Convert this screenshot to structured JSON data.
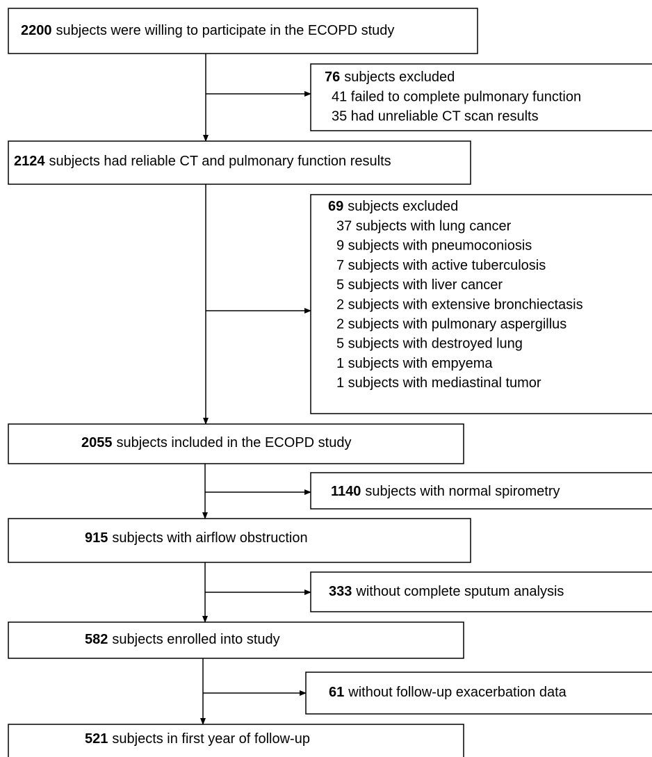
{
  "main_boxes": [
    {
      "count": "2200",
      "text": "subjects were willing to participate in the ECOPD study"
    },
    {
      "count": "2124",
      "text": "subjects had reliable CT and pulmonary function results"
    },
    {
      "count": "2055",
      "text": "subjects included in the ECOPD study"
    },
    {
      "count": "915",
      "text": "subjects with airflow obstruction"
    },
    {
      "count": "582",
      "text": "subjects enrolled into study"
    },
    {
      "count": "521",
      "text": "subjects in first year of follow-up"
    }
  ],
  "exclusion_boxes": [
    {
      "count": "76",
      "text": "subjects excluded",
      "items": [
        "41 failed to complete pulmonary function",
        "35 had unreliable CT scan results"
      ]
    },
    {
      "count": "69",
      "text": "subjects excluded",
      "items": [
        "37 subjects with lung cancer",
        "9 subjects with pneumoconiosis",
        "7 subjects with active tuberculosis",
        "5 subjects with liver cancer",
        "2 subjects with extensive bronchiectasis",
        "2 subjects with pulmonary aspergillus",
        "5 subjects with destroyed lung",
        "1 subjects with empyema",
        "1 subjects with mediastinal tumor"
      ]
    },
    {
      "count": "1140",
      "text": "subjects with normal spirometry"
    },
    {
      "count": "333",
      "text": "without complete sputum analysis"
    },
    {
      "count": "61",
      "text": "without follow-up exacerbation data"
    }
  ]
}
